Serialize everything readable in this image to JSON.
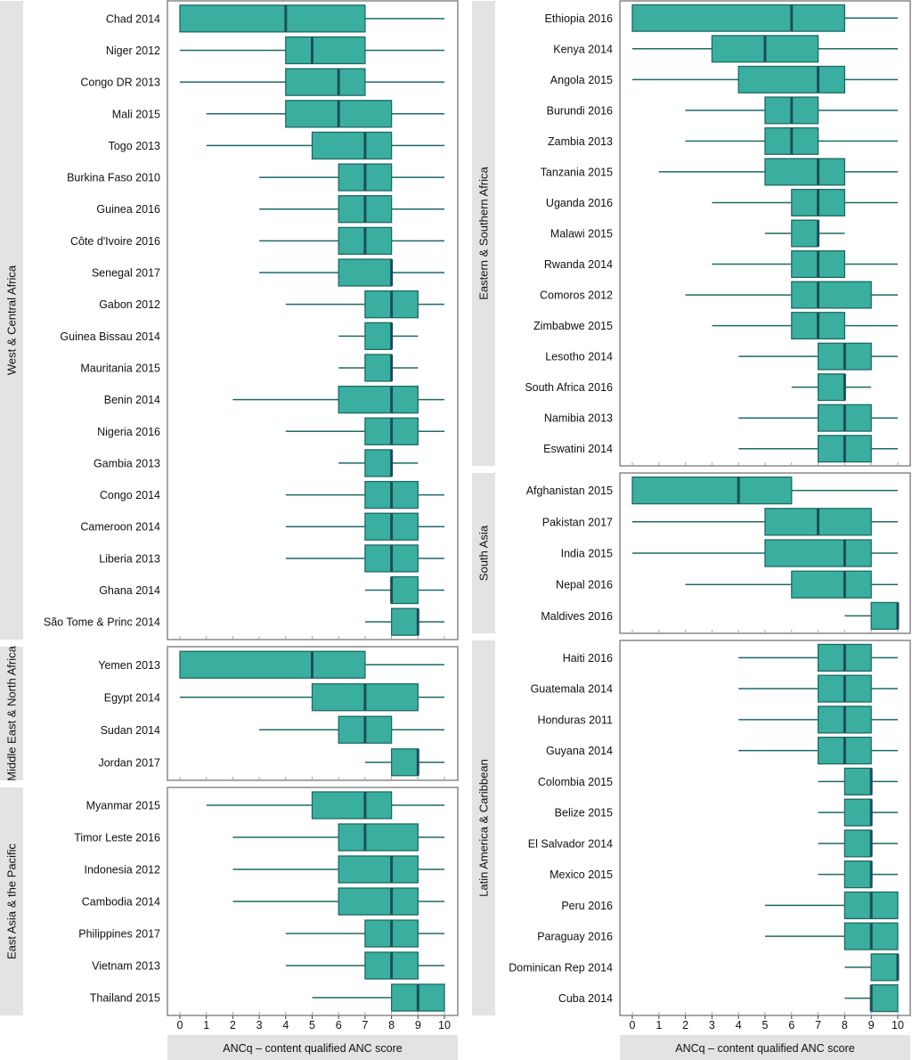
{
  "colors": {
    "box_fill": "#3aafa0",
    "box_stroke": "#1d6a64",
    "median": "#1a4f5a",
    "whisker": "#1d6a64",
    "panel_border": "#888888",
    "strip_bg": "#e3e3e3"
  },
  "chart_data": {
    "type": "boxplot",
    "xlabel": "ANCq – content qualified ANC score",
    "xlim": [
      0,
      10
    ],
    "xticks": [
      0,
      1,
      2,
      3,
      4,
      5,
      6,
      7,
      8,
      9,
      10
    ],
    "columns": [
      {
        "panels": [
          {
            "region": "West & Central Africa",
            "rows": [
              {
                "label": "Chad 2014",
                "min": 0,
                "q1": 0,
                "median": 4,
                "q3": 7,
                "max": 10
              },
              {
                "label": "Niger 2012",
                "min": 0,
                "q1": 4,
                "median": 5,
                "q3": 7,
                "max": 10
              },
              {
                "label": "Congo DR 2013",
                "min": 0,
                "q1": 4,
                "median": 6,
                "q3": 7,
                "max": 10
              },
              {
                "label": "Mali 2015",
                "min": 1,
                "q1": 4,
                "median": 6,
                "q3": 8,
                "max": 10
              },
              {
                "label": "Togo 2013",
                "min": 1,
                "q1": 5,
                "median": 7,
                "q3": 8,
                "max": 10
              },
              {
                "label": "Burkina Faso 2010",
                "min": 3,
                "q1": 6,
                "median": 7,
                "q3": 8,
                "max": 10
              },
              {
                "label": "Guinea 2016",
                "min": 3,
                "q1": 6,
                "median": 7,
                "q3": 8,
                "max": 10
              },
              {
                "label": "Côte d'Ivoire 2016",
                "min": 3,
                "q1": 6,
                "median": 7,
                "q3": 8,
                "max": 10
              },
              {
                "label": "Senegal 2017",
                "min": 3,
                "q1": 6,
                "median": 8,
                "q3": 8,
                "max": 10
              },
              {
                "label": "Gabon 2012",
                "min": 4,
                "q1": 7,
                "median": 8,
                "q3": 9,
                "max": 10
              },
              {
                "label": "Guinea Bissau 2014",
                "min": 6,
                "q1": 7,
                "median": 8,
                "q3": 8,
                "max": 9
              },
              {
                "label": "Mauritania 2015",
                "min": 6,
                "q1": 7,
                "median": 8,
                "q3": 8,
                "max": 9
              },
              {
                "label": "Benin 2014",
                "min": 2,
                "q1": 6,
                "median": 8,
                "q3": 9,
                "max": 10
              },
              {
                "label": "Nigeria 2016",
                "min": 4,
                "q1": 7,
                "median": 8,
                "q3": 9,
                "max": 10
              },
              {
                "label": "Gambia 2013",
                "min": 6,
                "q1": 7,
                "median": 8,
                "q3": 8,
                "max": 9
              },
              {
                "label": "Congo 2014",
                "min": 4,
                "q1": 7,
                "median": 8,
                "q3": 9,
                "max": 10
              },
              {
                "label": "Cameroon 2014",
                "min": 4,
                "q1": 7,
                "median": 8,
                "q3": 9,
                "max": 10
              },
              {
                "label": "Liberia 2013",
                "min": 4,
                "q1": 7,
                "median": 8,
                "q3": 9,
                "max": 10
              },
              {
                "label": "Ghana 2014",
                "min": 7,
                "q1": 8,
                "median": 8,
                "q3": 9,
                "max": 10
              },
              {
                "label": "São Tome & Princ 2014",
                "min": 7,
                "q1": 8,
                "median": 9,
                "q3": 9,
                "max": 10
              }
            ]
          },
          {
            "region": "Middle East & North Africa",
            "rows": [
              {
                "label": "Yemen 2013",
                "min": 0,
                "q1": 0,
                "median": 5,
                "q3": 7,
                "max": 10
              },
              {
                "label": "Egypt 2014",
                "min": 0,
                "q1": 5,
                "median": 7,
                "q3": 9,
                "max": 10
              },
              {
                "label": "Sudan 2014",
                "min": 3,
                "q1": 6,
                "median": 7,
                "q3": 8,
                "max": 10
              },
              {
                "label": "Jordan 2017",
                "min": 7,
                "q1": 8,
                "median": 9,
                "q3": 9,
                "max": 10
              }
            ]
          },
          {
            "region": "East Asia & the Pacific",
            "rows": [
              {
                "label": "Myanmar 2015",
                "min": 1,
                "q1": 5,
                "median": 7,
                "q3": 8,
                "max": 10
              },
              {
                "label": "Timor Leste 2016",
                "min": 2,
                "q1": 6,
                "median": 7,
                "q3": 9,
                "max": 10
              },
              {
                "label": "Indonesia 2012",
                "min": 2,
                "q1": 6,
                "median": 8,
                "q3": 9,
                "max": 10
              },
              {
                "label": "Cambodia 2014",
                "min": 2,
                "q1": 6,
                "median": 8,
                "q3": 9,
                "max": 10
              },
              {
                "label": "Philippines 2017",
                "min": 4,
                "q1": 7,
                "median": 8,
                "q3": 9,
                "max": 10
              },
              {
                "label": "Vietnam 2013",
                "min": 4,
                "q1": 7,
                "median": 8,
                "q3": 9,
                "max": 10
              },
              {
                "label": "Thailand 2015",
                "min": 5,
                "q1": 8,
                "median": 9,
                "q3": 10,
                "max": 10
              }
            ]
          }
        ]
      },
      {
        "panels": [
          {
            "region": "Eastern & Southern Africa",
            "rows": [
              {
                "label": "Ethiopia 2016",
                "min": 0,
                "q1": 0,
                "median": 6,
                "q3": 8,
                "max": 10
              },
              {
                "label": "Kenya 2014",
                "min": 0,
                "q1": 3,
                "median": 5,
                "q3": 7,
                "max": 10
              },
              {
                "label": "Angola 2015",
                "min": 0,
                "q1": 4,
                "median": 7,
                "q3": 8,
                "max": 10
              },
              {
                "label": "Burundi 2016",
                "min": 2,
                "q1": 5,
                "median": 6,
                "q3": 7,
                "max": 10
              },
              {
                "label": "Zambia 2013",
                "min": 2,
                "q1": 5,
                "median": 6,
                "q3": 7,
                "max": 10
              },
              {
                "label": "Tanzania 2015",
                "min": 1,
                "q1": 5,
                "median": 7,
                "q3": 8,
                "max": 10
              },
              {
                "label": "Uganda 2016",
                "min": 3,
                "q1": 6,
                "median": 7,
                "q3": 8,
                "max": 10
              },
              {
                "label": "Malawi 2015",
                "min": 5,
                "q1": 6,
                "median": 7,
                "q3": 7,
                "max": 8
              },
              {
                "label": "Rwanda 2014",
                "min": 3,
                "q1": 6,
                "median": 7,
                "q3": 8,
                "max": 10
              },
              {
                "label": "Comoros 2012",
                "min": 2,
                "q1": 6,
                "median": 7,
                "q3": 9,
                "max": 10
              },
              {
                "label": "Zimbabwe 2015",
                "min": 3,
                "q1": 6,
                "median": 7,
                "q3": 8,
                "max": 10
              },
              {
                "label": "Lesotho 2014",
                "min": 4,
                "q1": 7,
                "median": 8,
                "q3": 9,
                "max": 10
              },
              {
                "label": "South Africa 2016",
                "min": 6,
                "q1": 7,
                "median": 8,
                "q3": 8,
                "max": 9
              },
              {
                "label": "Namibia 2013",
                "min": 4,
                "q1": 7,
                "median": 8,
                "q3": 9,
                "max": 10
              },
              {
                "label": "Eswatini 2014",
                "min": 4,
                "q1": 7,
                "median": 8,
                "q3": 9,
                "max": 10
              }
            ]
          },
          {
            "region": "South Asia",
            "rows": [
              {
                "label": "Afghanistan 2015",
                "min": 0,
                "q1": 0,
                "median": 4,
                "q3": 6,
                "max": 10
              },
              {
                "label": "Pakistan 2017",
                "min": 0,
                "q1": 5,
                "median": 7,
                "q3": 9,
                "max": 10
              },
              {
                "label": "India 2015",
                "min": 0,
                "q1": 5,
                "median": 8,
                "q3": 9,
                "max": 10
              },
              {
                "label": "Nepal 2016",
                "min": 2,
                "q1": 6,
                "median": 8,
                "q3": 9,
                "max": 10
              },
              {
                "label": "Maldives 2016",
                "min": 8,
                "q1": 9,
                "median": 10,
                "q3": 10,
                "max": 10
              }
            ]
          },
          {
            "region": "Latin America & Caribbean",
            "rows": [
              {
                "label": "Haiti 2016",
                "min": 4,
                "q1": 7,
                "median": 8,
                "q3": 9,
                "max": 10
              },
              {
                "label": "Guatemala 2014",
                "min": 4,
                "q1": 7,
                "median": 8,
                "q3": 9,
                "max": 10
              },
              {
                "label": "Honduras 2011",
                "min": 4,
                "q1": 7,
                "median": 8,
                "q3": 9,
                "max": 10
              },
              {
                "label": "Guyana 2014",
                "min": 4,
                "q1": 7,
                "median": 8,
                "q3": 9,
                "max": 10
              },
              {
                "label": "Colombia 2015",
                "min": 7,
                "q1": 8,
                "median": 9,
                "q3": 9,
                "max": 10
              },
              {
                "label": "Belize 2015",
                "min": 7,
                "q1": 8,
                "median": 9,
                "q3": 9,
                "max": 10
              },
              {
                "label": "El Salvador 2014",
                "min": 7,
                "q1": 8,
                "median": 9,
                "q3": 9,
                "max": 10
              },
              {
                "label": "Mexico 2015",
                "min": 7,
                "q1": 8,
                "median": 9,
                "q3": 9,
                "max": 10
              },
              {
                "label": "Peru 2016",
                "min": 5,
                "q1": 8,
                "median": 9,
                "q3": 10,
                "max": 10
              },
              {
                "label": "Paraguay 2016",
                "min": 5,
                "q1": 8,
                "median": 9,
                "q3": 10,
                "max": 10
              },
              {
                "label": "Dominican Rep 2014",
                "min": 8,
                "q1": 9,
                "median": 10,
                "q3": 10,
                "max": 10
              },
              {
                "label": "Cuba 2014",
                "min": 8,
                "q1": 9,
                "median": 9,
                "q3": 10,
                "max": 10
              }
            ]
          }
        ]
      }
    ]
  }
}
